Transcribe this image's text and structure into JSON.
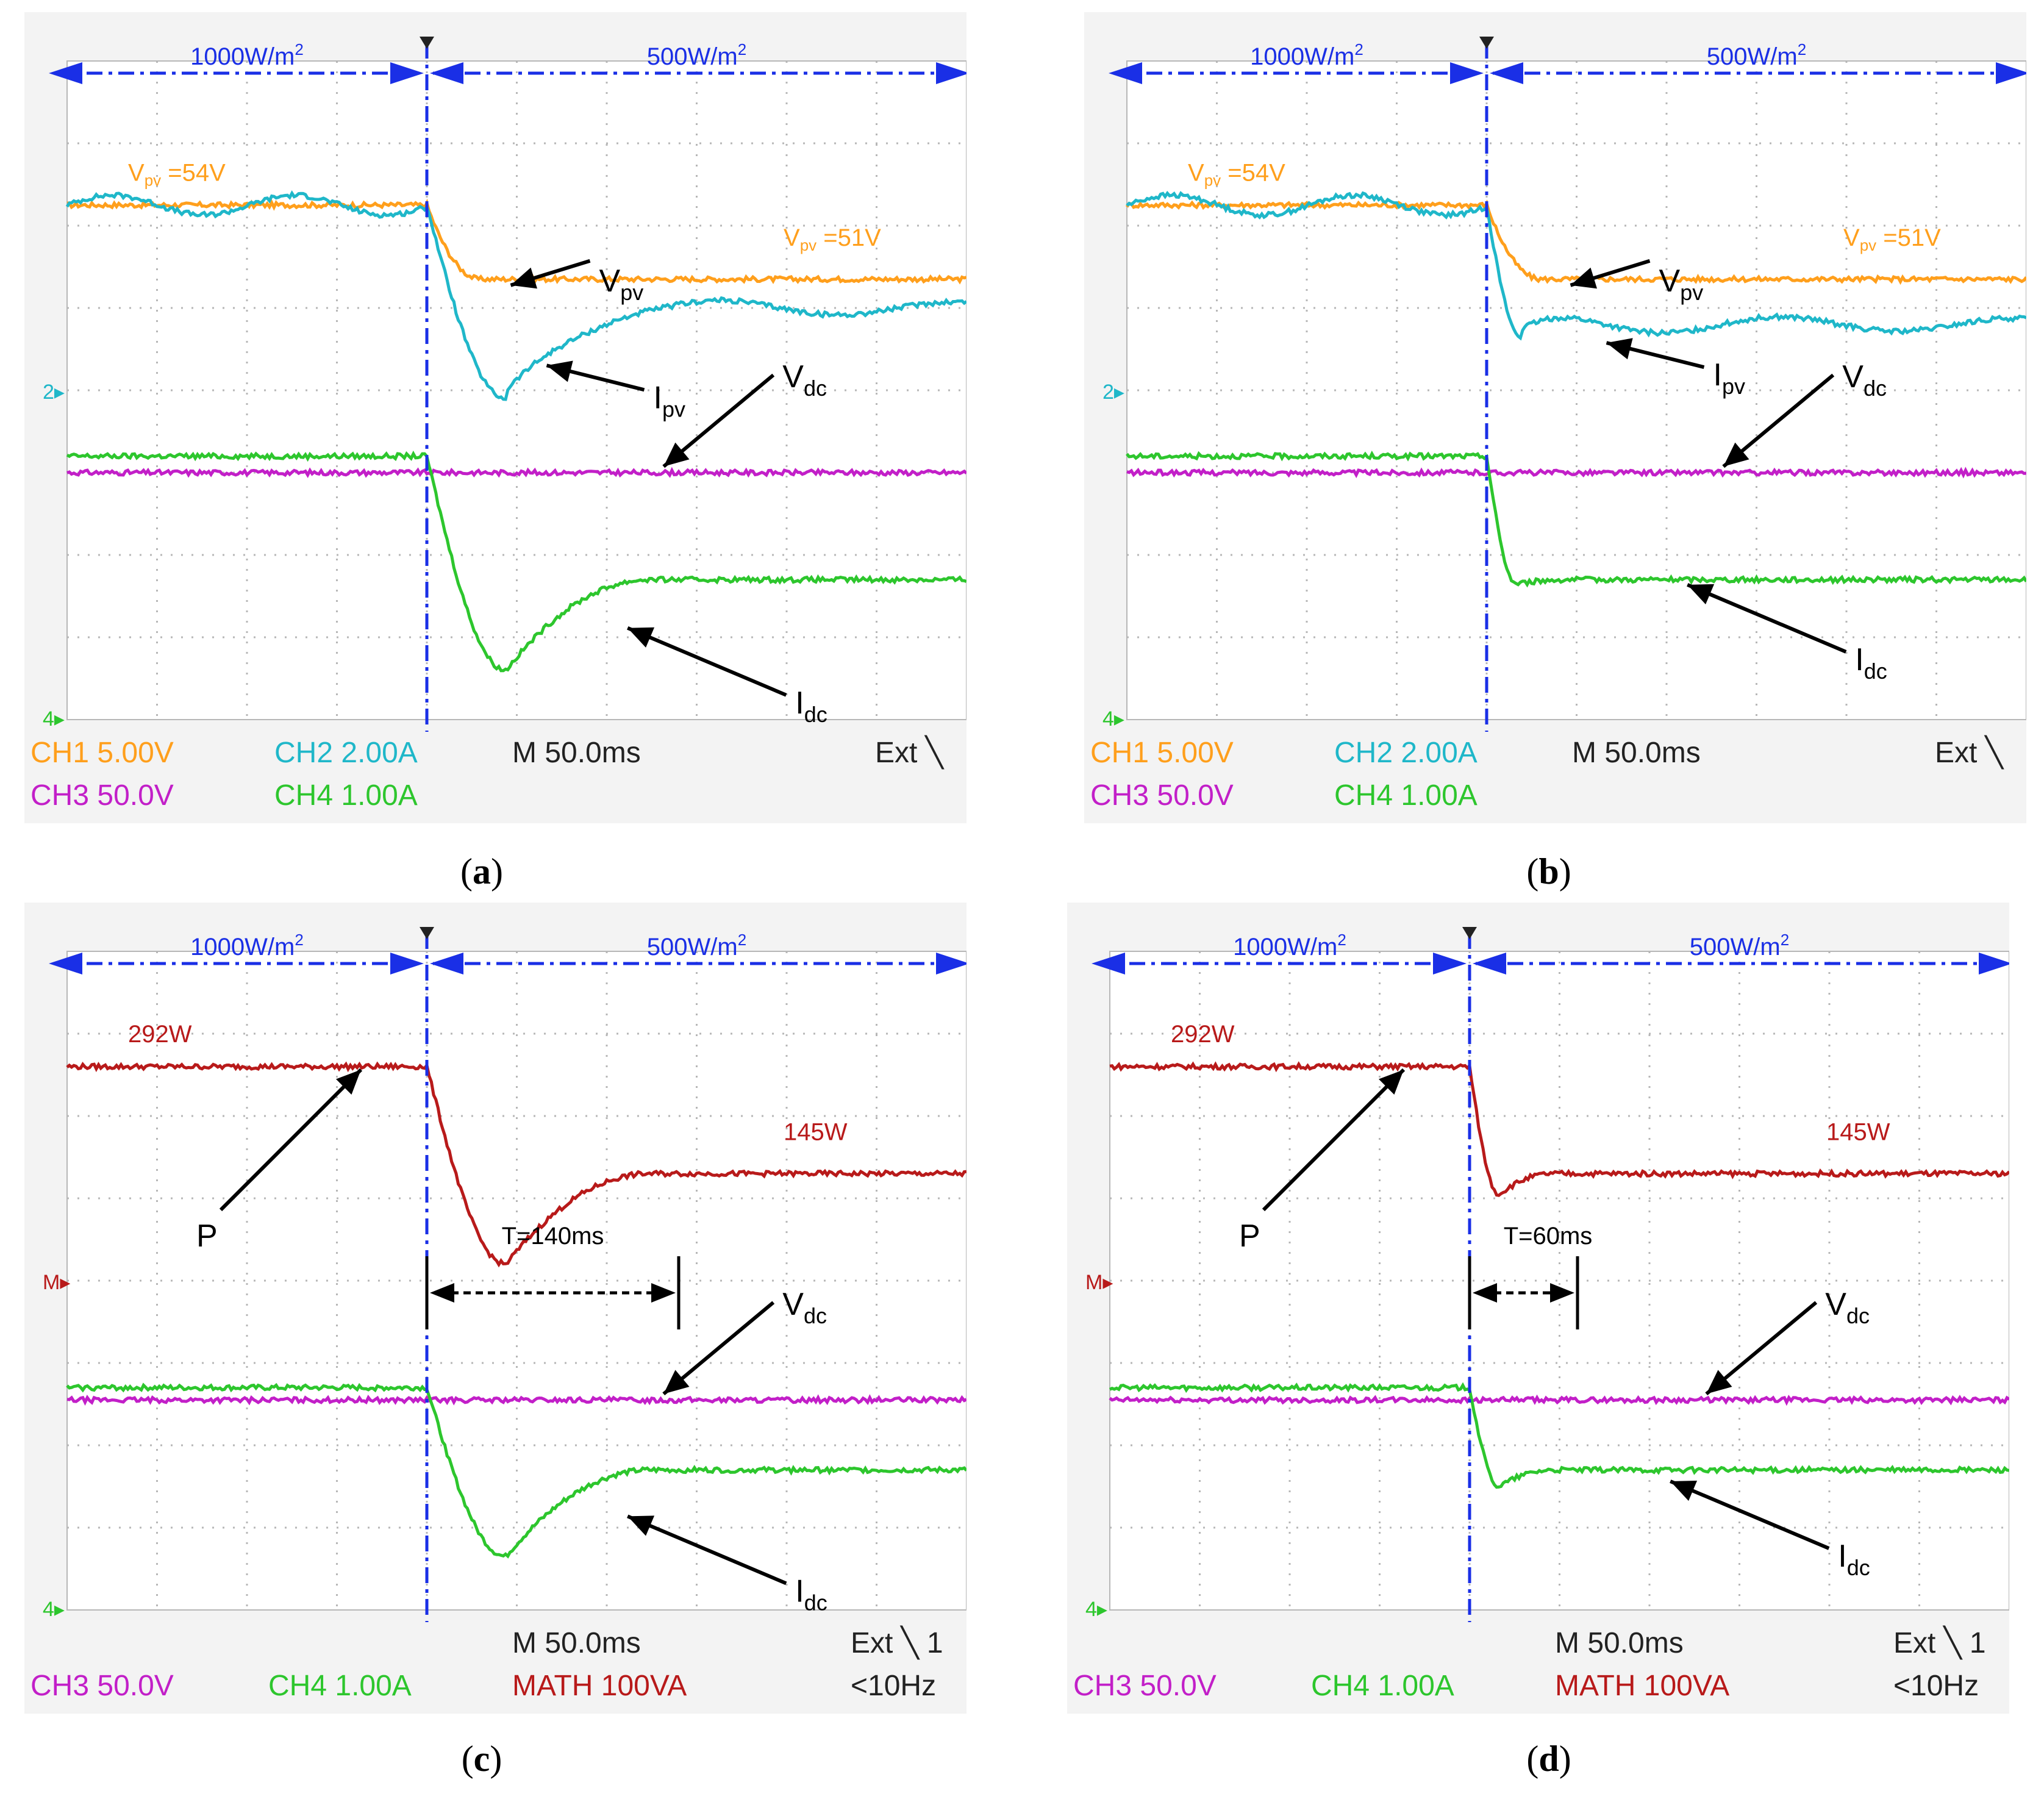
{
  "colors": {
    "ch1": "#FF9F1C",
    "ch2": "#1FB7C9",
    "ch3": "#C21FC8",
    "ch4": "#2DC62D",
    "math": "#B81A1A",
    "annot_blue": "#1A2FE6",
    "screen_bg": "#F3F3F3",
    "grid": "#B7B7B7",
    "arrow": "#000000"
  },
  "chart_data": [
    {
      "id": "a",
      "type": "line",
      "caption_letter": "a",
      "irradiance_before": "1000W/m",
      "irradiance_after": "500W/m",
      "superscript": "2",
      "time_axis": {
        "unit": "ms",
        "div": 50,
        "divisions": 10,
        "step_time_div": 4.0
      },
      "series": [
        {
          "name": "Vpv",
          "channel": "ch1",
          "label_main": "V",
          "label_sub": "pv",
          "before_div": 6.25,
          "after_div": 5.35,
          "undershoot_div": 5.35,
          "settle_div": 0.6
        },
        {
          "name": "Ipv",
          "channel": "ch2",
          "label_main": "I",
          "label_sub": "pv",
          "before_div": 6.25,
          "after_div": 5.0,
          "undershoot_div": 3.9,
          "settle_div": 1.6
        },
        {
          "name": "Vdc",
          "channel": "ch3",
          "label_main": "V",
          "label_sub": "dc",
          "before_div": 3.0,
          "after_div": 3.0,
          "undershoot_div": 3.0,
          "settle_div": 0.5
        },
        {
          "name": "Idc",
          "channel": "ch4",
          "label_main": "I",
          "label_sub": "dc",
          "before_div": 3.2,
          "after_div": 1.7,
          "undershoot_div": 0.6,
          "settle_div": 1.6
        }
      ],
      "value_labels": [
        {
          "text": "V",
          "sub": "pv",
          "rest": " =54V"
        },
        {
          "text": "V",
          "sub": "pv",
          "rest": " =51V"
        }
      ],
      "status": [
        {
          "label": "CH1",
          "value": "5.00V",
          "channel": "ch1"
        },
        {
          "label": "CH2",
          "value": "2.00A",
          "channel": "ch2"
        },
        {
          "label": "CH3",
          "value": "50.0V",
          "channel": "ch3"
        },
        {
          "label": "CH4",
          "value": "1.00A",
          "channel": "ch4"
        }
      ],
      "timebase": "M 50.0ms",
      "trigger": "Ext",
      "trigger_extra": "",
      "marker_left": "2"
    },
    {
      "id": "b",
      "type": "line",
      "caption_letter": "b",
      "irradiance_before": "1000W/m",
      "irradiance_after": "500W/m",
      "superscript": "2",
      "time_axis": {
        "unit": "ms",
        "div": 50,
        "divisions": 10,
        "step_time_div": 4.0
      },
      "series": [
        {
          "name": "Vpv",
          "channel": "ch1",
          "label_main": "V",
          "label_sub": "pv",
          "before_div": 6.25,
          "after_div": 5.35,
          "undershoot_div": 5.35,
          "settle_div": 0.6
        },
        {
          "name": "Ipv",
          "channel": "ch2",
          "label_main": "I",
          "label_sub": "pv",
          "before_div": 6.25,
          "after_div": 4.8,
          "undershoot_div": 4.65,
          "settle_div": 0.7
        },
        {
          "name": "Vdc",
          "channel": "ch3",
          "label_main": "V",
          "label_sub": "dc",
          "before_div": 3.0,
          "after_div": 3.0,
          "undershoot_div": 3.0,
          "settle_div": 0.5
        },
        {
          "name": "Idc",
          "channel": "ch4",
          "label_main": "I",
          "label_sub": "dc",
          "before_div": 3.2,
          "after_div": 1.7,
          "undershoot_div": 1.65,
          "settle_div": 0.6
        }
      ],
      "value_labels": [
        {
          "text": "V",
          "sub": "pv",
          "rest": " =54V"
        },
        {
          "text": "V",
          "sub": "pv",
          "rest": " =51V"
        }
      ],
      "status": [
        {
          "label": "CH1",
          "value": "5.00V",
          "channel": "ch1"
        },
        {
          "label": "CH2",
          "value": "2.00A",
          "channel": "ch2"
        },
        {
          "label": "CH3",
          "value": "50.0V",
          "channel": "ch3"
        },
        {
          "label": "CH4",
          "value": "1.00A",
          "channel": "ch4"
        }
      ],
      "timebase": "M 50.0ms",
      "trigger": "Ext",
      "trigger_extra": "",
      "marker_left": "2"
    },
    {
      "id": "c",
      "type": "line",
      "caption_letter": "c",
      "irradiance_before": "1000W/m",
      "irradiance_after": "500W/m",
      "superscript": "2",
      "time_axis": {
        "unit": "ms",
        "div": 50,
        "divisions": 10,
        "step_time_div": 4.0
      },
      "series": [
        {
          "name": "P",
          "channel": "math",
          "label_main": "P",
          "label_sub": "",
          "before_div": 6.6,
          "after_div": 5.3,
          "undershoot_div": 4.2,
          "settle_div": 1.6
        },
        {
          "name": "Vdc",
          "channel": "ch3",
          "label_main": "V",
          "label_sub": "dc",
          "before_div": 2.55,
          "after_div": 2.55,
          "undershoot_div": 2.55,
          "settle_div": 0.5
        },
        {
          "name": "Idc",
          "channel": "ch4",
          "label_main": "I",
          "label_sub": "dc",
          "before_div": 2.7,
          "after_div": 1.7,
          "undershoot_div": 0.65,
          "settle_div": 1.6
        }
      ],
      "value_labels": [
        {
          "text": "292W"
        },
        {
          "text": "145W"
        }
      ],
      "settling_time": "T=140ms",
      "settling_time_ms": 140,
      "status": [
        {
          "label": "CH3",
          "value": "50.0V",
          "channel": "ch3"
        },
        {
          "label": "CH4",
          "value": "1.00A",
          "channel": "ch4"
        },
        {
          "label": "MATH",
          "value": "100VA",
          "channel": "math"
        }
      ],
      "timebase": "M 50.0ms",
      "trigger": "Ext",
      "trigger_extra": "<10Hz",
      "marker_left": "M"
    },
    {
      "id": "d",
      "type": "line",
      "caption_letter": "d",
      "irradiance_before": "1000W/m",
      "irradiance_after": "500W/m",
      "superscript": "2",
      "time_axis": {
        "unit": "ms",
        "div": 50,
        "divisions": 10,
        "step_time_div": 4.0
      },
      "series": [
        {
          "name": "P",
          "channel": "math",
          "label_main": "P",
          "label_sub": "",
          "before_div": 6.6,
          "after_div": 5.3,
          "undershoot_div": 5.05,
          "settle_div": 0.6
        },
        {
          "name": "Vdc",
          "channel": "ch3",
          "label_main": "V",
          "label_sub": "dc",
          "before_div": 2.55,
          "after_div": 2.55,
          "undershoot_div": 2.55,
          "settle_div": 0.5
        },
        {
          "name": "Idc",
          "channel": "ch4",
          "label_main": "I",
          "label_sub": "dc",
          "before_div": 2.7,
          "after_div": 1.7,
          "undershoot_div": 1.5,
          "settle_div": 0.6
        }
      ],
      "value_labels": [
        {
          "text": "292W"
        },
        {
          "text": "145W"
        }
      ],
      "settling_time": "T=60ms",
      "settling_time_ms": 60,
      "status": [
        {
          "label": "CH3",
          "value": "50.0V",
          "channel": "ch3"
        },
        {
          "label": "CH4",
          "value": "1.00A",
          "channel": "ch4"
        },
        {
          "label": "MATH",
          "value": "100VA",
          "channel": "math"
        }
      ],
      "timebase": "M 50.0ms",
      "trigger": "Ext",
      "trigger_extra": "<10Hz",
      "marker_left": "M"
    }
  ]
}
